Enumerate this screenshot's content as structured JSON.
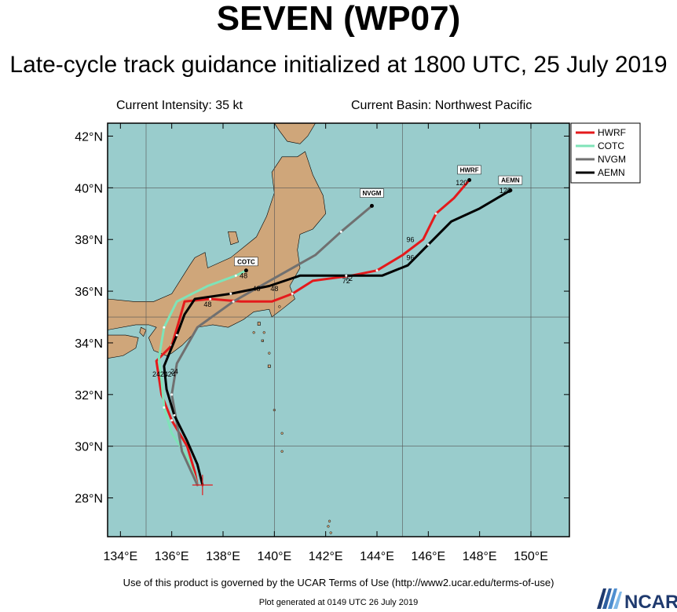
{
  "header": {
    "title": "SEVEN (WP07)",
    "subtitle": "Late-cycle track guidance initialized at 1800 UTC, 25 July 2019",
    "current_intensity": "Current Intensity: 35 kt",
    "current_basin": "Current Basin: Northwest Pacific"
  },
  "map": {
    "lat_range": [
      26.5,
      42.5
    ],
    "lon_range": [
      133.5,
      151.5
    ],
    "lat_ticks": [
      {
        "lat": 28,
        "label": "28°N"
      },
      {
        "lat": 30,
        "label": "30°N"
      },
      {
        "lat": 32,
        "label": "32°N"
      },
      {
        "lat": 34,
        "label": "34°N"
      },
      {
        "lat": 36,
        "label": "36°N"
      },
      {
        "lat": 38,
        "label": "38°N"
      },
      {
        "lat": 40,
        "label": "40°N"
      },
      {
        "lat": 42,
        "label": "42°N"
      }
    ],
    "lon_ticks": [
      {
        "lon": 134,
        "label": "134°E"
      },
      {
        "lon": 136,
        "label": "136°E"
      },
      {
        "lon": 138,
        "label": "138°E"
      },
      {
        "lon": 140,
        "label": "140°E"
      },
      {
        "lon": 142,
        "label": "142°E"
      },
      {
        "lon": 144,
        "label": "144°E"
      },
      {
        "lon": 146,
        "label": "146°E"
      },
      {
        "lon": 148,
        "label": "148°E"
      },
      {
        "lon": 150,
        "label": "150°E"
      }
    ],
    "ocean_color": "#99cccc",
    "land_color": "#cfa67a",
    "current_position": {
      "lon": 137.2,
      "lat": 28.5
    }
  },
  "legend": {
    "entries": [
      {
        "name": "HWRF",
        "color": "#e41a1c"
      },
      {
        "name": "COTC",
        "color": "#7fe3b8"
      },
      {
        "name": "NVGM",
        "color": "#707070"
      },
      {
        "name": "AEMN",
        "color": "#000000"
      }
    ]
  },
  "tracks": [
    {
      "name": "HWRF",
      "color": "#e41a1c",
      "points": [
        [
          137.0,
          28.5
        ],
        [
          136.9,
          29.0
        ],
        [
          136.6,
          30.0
        ],
        [
          136.0,
          31.0
        ],
        [
          135.6,
          32.0
        ],
        [
          135.4,
          33.3
        ],
        [
          136.0,
          33.9
        ],
        [
          136.3,
          34.9
        ],
        [
          136.5,
          35.6
        ],
        [
          137.5,
          35.7
        ],
        [
          138.7,
          35.6
        ],
        [
          139.9,
          35.6
        ],
        [
          140.7,
          35.9
        ],
        [
          141.5,
          36.4
        ],
        [
          143.0,
          36.6
        ],
        [
          144.0,
          36.8
        ],
        [
          145.0,
          37.4
        ],
        [
          145.8,
          38.0
        ],
        [
          146.3,
          39.0
        ],
        [
          147.0,
          39.6
        ],
        [
          147.6,
          40.3
        ]
      ],
      "labels": [
        {
          "lon": 135.4,
          "lat": 32.7,
          "text": "24"
        },
        {
          "lon": 137.4,
          "lat": 35.4,
          "text": "48"
        },
        {
          "lon": 142.9,
          "lat": 36.4,
          "text": "72"
        },
        {
          "lon": 145.3,
          "lat": 37.9,
          "text": "96"
        },
        {
          "lon": 147.3,
          "lat": 40.1,
          "text": "120"
        }
      ],
      "tag": {
        "lon": 147.6,
        "lat": 40.65,
        "text": "HWRF"
      }
    },
    {
      "name": "COTC",
      "color": "#7fe3b8",
      "points": [
        [
          137.0,
          28.5
        ],
        [
          136.6,
          29.6
        ],
        [
          136.0,
          30.5
        ],
        [
          135.7,
          31.5
        ],
        [
          135.6,
          32.6
        ],
        [
          135.5,
          33.4
        ],
        [
          135.7,
          34.6
        ],
        [
          136.2,
          35.6
        ],
        [
          137.4,
          36.2
        ],
        [
          138.5,
          36.6
        ],
        [
          138.9,
          36.8
        ]
      ],
      "labels": [
        {
          "lon": 135.7,
          "lat": 32.7,
          "text": "24"
        },
        {
          "lon": 138.8,
          "lat": 36.5,
          "text": "48"
        }
      ],
      "tag": {
        "lon": 138.9,
        "lat": 37.1,
        "text": "COTC"
      }
    },
    {
      "name": "NVGM",
      "color": "#707070",
      "points": [
        [
          137.0,
          28.5
        ],
        [
          136.4,
          29.8
        ],
        [
          136.2,
          30.9
        ],
        [
          136.0,
          32.0
        ],
        [
          136.2,
          33.2
        ],
        [
          137.0,
          34.6
        ],
        [
          138.4,
          35.6
        ],
        [
          140.0,
          36.5
        ],
        [
          141.6,
          37.4
        ],
        [
          142.6,
          38.3
        ],
        [
          143.8,
          39.3
        ]
      ],
      "labels": [
        {
          "lon": 136.1,
          "lat": 32.8,
          "text": "24"
        },
        {
          "lon": 139.3,
          "lat": 36.0,
          "text": "48"
        }
      ],
      "tag": {
        "lon": 143.8,
        "lat": 39.75,
        "text": "NVGM"
      }
    },
    {
      "name": "AEMN",
      "color": "#000000",
      "points": [
        [
          137.2,
          28.5
        ],
        [
          137.0,
          29.3
        ],
        [
          136.6,
          30.2
        ],
        [
          136.1,
          31.2
        ],
        [
          135.8,
          32.2
        ],
        [
          135.7,
          33.1
        ],
        [
          136.2,
          34.3
        ],
        [
          136.5,
          35.1
        ],
        [
          136.9,
          35.7
        ],
        [
          138.3,
          35.9
        ],
        [
          139.8,
          36.2
        ],
        [
          141.0,
          36.6
        ],
        [
          142.8,
          36.6
        ],
        [
          144.2,
          36.6
        ],
        [
          145.2,
          37.0
        ],
        [
          146.0,
          37.8
        ],
        [
          146.9,
          38.7
        ],
        [
          148.0,
          39.2
        ],
        [
          149.2,
          39.9
        ]
      ],
      "labels": [
        {
          "lon": 136.0,
          "lat": 32.7,
          "text": "24"
        },
        {
          "lon": 140.0,
          "lat": 36.0,
          "text": "48"
        },
        {
          "lon": 142.8,
          "lat": 36.3,
          "text": "72"
        },
        {
          "lon": 145.3,
          "lat": 37.2,
          "text": "96"
        },
        {
          "lon": 149.0,
          "lat": 39.8,
          "text": "120"
        }
      ],
      "tag": {
        "lon": 149.2,
        "lat": 40.25,
        "text": "AEMN"
      }
    }
  ],
  "footer": {
    "terms": "Use of this product is governed by the UCAR Terms of Use (http://www2.ucar.edu/terms-of-use)",
    "generated": "Plot generated at 0149 UTC   26 July 2019",
    "logo_text": "NCAR"
  }
}
